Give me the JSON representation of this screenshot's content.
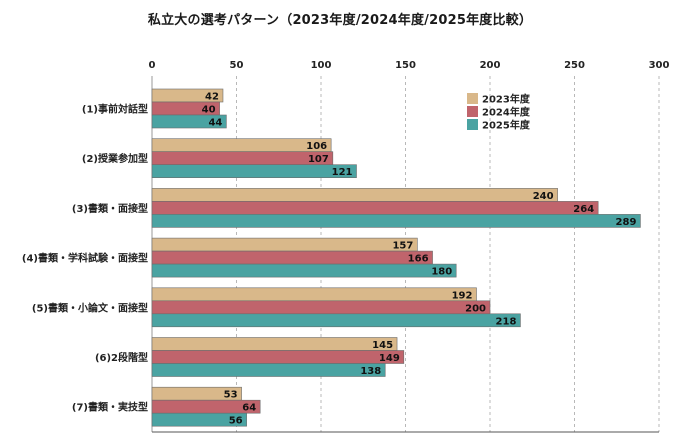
{
  "chart_data": {
    "type": "bar",
    "orientation": "horizontal",
    "title": "私立大の選考パターン（2023年度/2024年度/2025年度比較）",
    "categories": [
      "(1)事前対話型",
      "(2)授業参加型",
      "(3)書類・面接型",
      "(4)書類・学科試験・面接型",
      "(5)書類・小論文・面接型",
      "(6)2段階型",
      "(7)書類・実技型"
    ],
    "series": [
      {
        "name": "2023年度",
        "color": "#d9b88a",
        "values": [
          42,
          106,
          240,
          157,
          192,
          145,
          53
        ]
      },
      {
        "name": "2024年度",
        "color": "#c0646c",
        "values": [
          40,
          107,
          264,
          166,
          200,
          149,
          64
        ]
      },
      {
        "name": "2025年度",
        "color": "#4aa3a2",
        "values": [
          44,
          121,
          289,
          180,
          218,
          138,
          56
        ]
      }
    ],
    "xticks": [
      0,
      50,
      100,
      150,
      200,
      250,
      300
    ],
    "xlim": [
      0,
      300
    ],
    "xlabel": "",
    "ylabel": "",
    "grid": "vertical-dashed",
    "axis_position": "top",
    "legend_position": "top-right-inside"
  }
}
